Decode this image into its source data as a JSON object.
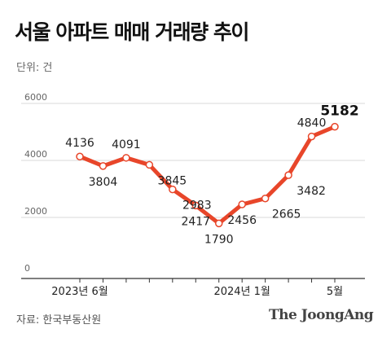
{
  "header": {
    "title": "서울 아파트 매매 거래량 추이",
    "unit": "단위: 건"
  },
  "footer": {
    "source": "자료: 한국부동산원",
    "brand": "The JoongAng"
  },
  "colors": {
    "line": "#e8462a",
    "marker_fill": "#ffffff",
    "grid": "#d9d9d9",
    "axis": "#333333"
  },
  "chart_data": {
    "type": "line",
    "title": "서울 아파트 매매 거래량 추이",
    "ylabel": "단위: 건",
    "ylim": [
      0,
      6000
    ],
    "yticks": [
      0,
      2000,
      4000,
      6000
    ],
    "grid": true,
    "x_tick_labels": [
      {
        "index": 0,
        "label": "2023년 6월"
      },
      {
        "index": 7,
        "label": "2024년 1월"
      },
      {
        "index": 11,
        "label": "5월"
      }
    ],
    "x": [
      "2023-06",
      "2023-07",
      "2023-08",
      "2023-09",
      "2023-10",
      "2023-11",
      "2023-12",
      "2024-01",
      "2024-02",
      "2024-03",
      "2024-04",
      "2024-05"
    ],
    "series": [
      {
        "values": [
          4136,
          3804,
          4091,
          3845,
          2983,
          2417,
          1790,
          2456,
          2665,
          3482,
          4840,
          5182
        ],
        "labels": [
          "4136",
          "3804",
          "4091",
          "3845",
          "2983",
          "2417",
          "1790",
          "2456",
          "2665",
          "3482",
          "4840",
          "5182"
        ],
        "highlight_index": 11
      }
    ]
  }
}
